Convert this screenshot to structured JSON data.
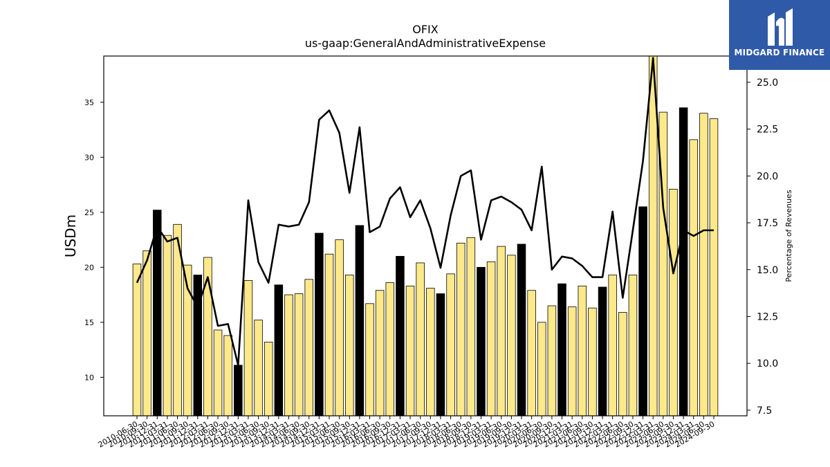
{
  "chart_data": {
    "type": "bar",
    "title": "OFIX",
    "subtitle": "us-gaap:GeneralAndAdministrativeExpense",
    "ylabel": "USDm",
    "y2label": "Percentage of Revenues",
    "ylim": [
      6.5,
      39.2
    ],
    "y2lim": [
      7.2,
      26.4
    ],
    "yticks": [
      10,
      15,
      20,
      25,
      30,
      35
    ],
    "y2ticks": [
      "7.5",
      "10.0",
      "12.5",
      "15.0",
      "17.5",
      "20.0",
      "22.5",
      "25.0"
    ],
    "colors": {
      "bar": "#fde98a",
      "bar_highlight": "#000000",
      "line": "#000000"
    },
    "categories": [
      "2010-06-30",
      "2010-09-30",
      "2010-12-31",
      "2011-03-31",
      "2011-06-30",
      "2011-09-30",
      "2011-12-31",
      "2012-03-31",
      "2012-06-30",
      "2012-09-30",
      "2012-12-31",
      "2013-03-31",
      "2013-06-30",
      "2013-09-30",
      "2013-12-31",
      "2014-03-31",
      "2014-06-30",
      "2014-09-30",
      "2014-12-31",
      "2015-03-31",
      "2015-06-30",
      "2015-09-30",
      "2015-12-31",
      "2016-03-31",
      "2016-06-30",
      "2016-09-30",
      "2016-12-31",
      "2017-03-31",
      "2017-06-30",
      "2017-09-30",
      "2017-12-31",
      "2018-03-31",
      "2018-06-30",
      "2018-09-30",
      "2018-12-31",
      "2019-03-31",
      "2019-06-30",
      "2019-09-30",
      "2019-12-31",
      "2020-03-31",
      "2020-06-30",
      "2020-09-30",
      "2020-12-31",
      "2021-03-31",
      "2021-06-30",
      "2021-09-30",
      "2021-12-31",
      "2022-03-31",
      "2022-06-30",
      "2022-09-30",
      "2022-12-31",
      "2023-03-31",
      "2023-06-30",
      "2023-09-30",
      "2023-12-31",
      "2024-03-31",
      "2024-06-30",
      "2024-09-30"
    ],
    "values": [
      20.3,
      21.5,
      25.2,
      22.9,
      23.9,
      20.2,
      19.3,
      20.9,
      14.3,
      13.8,
      11.1,
      18.8,
      15.2,
      13.2,
      18.4,
      17.5,
      17.6,
      18.9,
      23.1,
      21.2,
      22.5,
      19.3,
      23.8,
      16.7,
      17.9,
      18.6,
      21.0,
      18.3,
      20.4,
      18.1,
      17.6,
      19.4,
      22.2,
      22.7,
      20.0,
      20.5,
      21.9,
      21.1,
      22.1,
      17.9,
      15.0,
      16.5,
      18.5,
      16.4,
      18.3,
      16.3,
      18.2,
      19.3,
      15.9,
      19.3,
      25.5,
      39.2,
      34.1,
      27.1,
      34.5,
      31.6,
      34.0,
      33.5
    ],
    "highlight": [
      false,
      false,
      true,
      false,
      false,
      false,
      true,
      false,
      false,
      false,
      true,
      false,
      false,
      false,
      true,
      false,
      false,
      false,
      true,
      false,
      false,
      false,
      true,
      false,
      false,
      false,
      true,
      false,
      false,
      false,
      true,
      false,
      false,
      false,
      true,
      false,
      false,
      false,
      true,
      false,
      false,
      false,
      true,
      false,
      false,
      false,
      true,
      false,
      false,
      false,
      true,
      false,
      false,
      false,
      true,
      false,
      false,
      false
    ],
    "line_values": [
      14.3,
      15.5,
      17.3,
      16.5,
      16.7,
      14.0,
      13.0,
      14.6,
      12.0,
      12.1,
      9.9,
      18.7,
      15.4,
      14.3,
      17.4,
      17.3,
      17.4,
      18.6,
      23.0,
      23.5,
      22.3,
      19.1,
      22.6,
      17.0,
      17.3,
      18.8,
      19.4,
      17.8,
      18.7,
      17.2,
      15.1,
      17.9,
      20.0,
      20.3,
      16.6,
      18.7,
      18.9,
      18.6,
      18.2,
      17.1,
      20.5,
      15.0,
      15.7,
      15.6,
      15.2,
      14.6,
      14.6,
      18.1,
      13.5,
      17.1,
      20.8,
      26.3,
      18.3,
      14.8,
      17.1,
      16.8,
      17.1,
      17.1
    ]
  },
  "logo": {
    "text": "MIDGARD FINANCE"
  }
}
